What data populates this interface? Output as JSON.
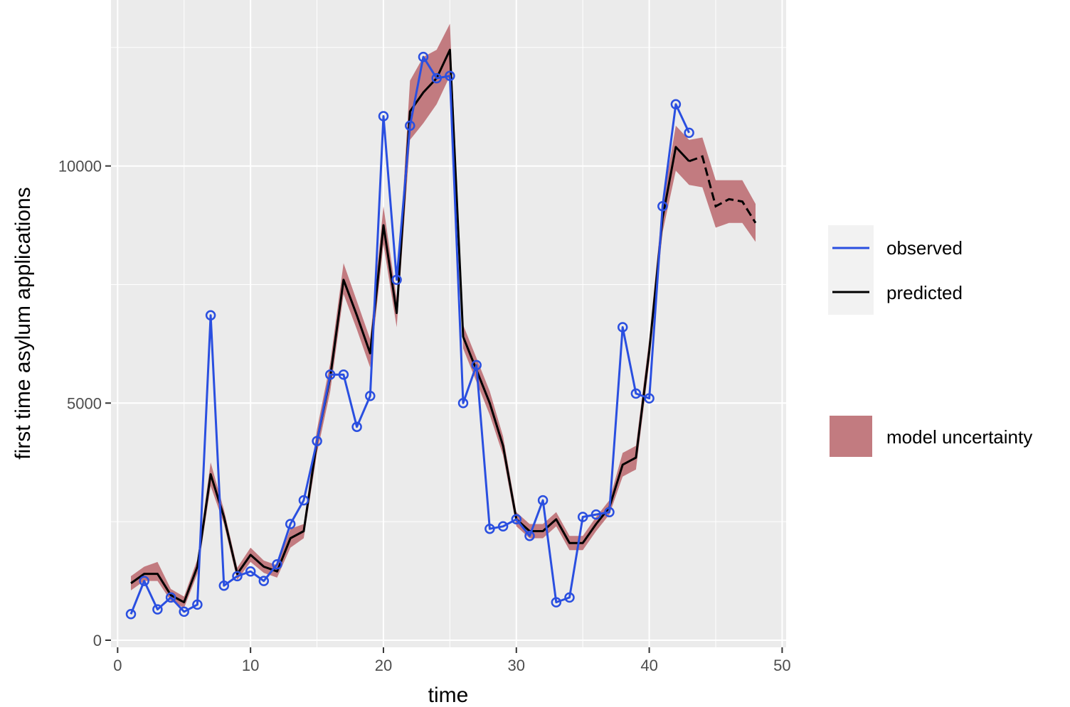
{
  "chart_data": {
    "type": "line",
    "title": "",
    "xlabel": "time",
    "ylabel": "first time asylum applications",
    "xlim": [
      -0.5,
      50.3
    ],
    "ylim": [
      -150,
      13500
    ],
    "x_ticks": [
      0,
      10,
      20,
      30,
      40,
      50
    ],
    "x_tick_labels": [
      "0",
      "10",
      "20",
      "30",
      "40",
      "50"
    ],
    "y_ticks": [
      0,
      5000,
      10000
    ],
    "y_tick_labels": [
      "0",
      "5000",
      "10000"
    ],
    "grid": true,
    "legend_position": "right",
    "colors": {
      "panel_background": "#ebebeb",
      "grid": "#ffffff",
      "observed": "#2a4fe0",
      "predicted": "#000000",
      "uncertainty": "#c27b80"
    },
    "legend": {
      "observed_label": "observed",
      "predicted_label": "predicted",
      "uncertainty_label": "model uncertainty"
    },
    "series": [
      {
        "name": "observed",
        "x": [
          1,
          2,
          3,
          4,
          5,
          6,
          7,
          8,
          9,
          10,
          11,
          12,
          13,
          14,
          15,
          16,
          17,
          18,
          19,
          20,
          21,
          22,
          23,
          24,
          25,
          26,
          27,
          28,
          29,
          30,
          31,
          32,
          33,
          34,
          35,
          36,
          37,
          38,
          39,
          40,
          41,
          42,
          43
        ],
        "values": [
          550,
          1250,
          650,
          900,
          600,
          750,
          6850,
          1150,
          1350,
          1450,
          1250,
          1600,
          2450,
          2950,
          4200,
          5600,
          5600,
          4500,
          5150,
          11050,
          7600,
          10850,
          12300,
          11850,
          11900,
          5000,
          5800,
          2350,
          2400,
          2550,
          2200,
          2950,
          800,
          900,
          2600,
          2650,
          2700,
          6600,
          5200,
          5100,
          9150,
          11300,
          10700
        ]
      },
      {
        "name": "predicted",
        "x": [
          1,
          2,
          3,
          4,
          5,
          6,
          7,
          8,
          9,
          10,
          11,
          12,
          13,
          14,
          15,
          16,
          17,
          18,
          19,
          20,
          21,
          22,
          23,
          24,
          25,
          26,
          27,
          28,
          29,
          30,
          31,
          32,
          33,
          34,
          35,
          36,
          37,
          38,
          39,
          40,
          41,
          42,
          43,
          44,
          45,
          46,
          47,
          48
        ],
        "values": [
          1200,
          1400,
          1400,
          950,
          800,
          1550,
          3500,
          2600,
          1400,
          1800,
          1550,
          1450,
          2150,
          2300,
          4200,
          5550,
          7600,
          6850,
          6050,
          8750,
          6900,
          11150,
          11550,
          11850,
          12450,
          6400,
          5700,
          5000,
          4100,
          2550,
          2300,
          2300,
          2550,
          2050,
          2050,
          2450,
          2800,
          3700,
          3850,
          6100,
          8900,
          10400,
          10100,
          10200,
          9150,
          9300,
          9250,
          8800
        ]
      }
    ],
    "uncertainty": {
      "name": "model uncertainty",
      "x": [
        1,
        2,
        3,
        4,
        5,
        6,
        7,
        8,
        9,
        10,
        11,
        12,
        13,
        14,
        15,
        16,
        17,
        18,
        19,
        20,
        21,
        22,
        23,
        24,
        25,
        26,
        27,
        28,
        29,
        30,
        31,
        32,
        33,
        34,
        35,
        36,
        37,
        38,
        39,
        40,
        41,
        42,
        43,
        44,
        45,
        46,
        47,
        48
      ],
      "lower": [
        1050,
        1250,
        1250,
        830,
        680,
        1400,
        3250,
        2450,
        1270,
        1650,
        1420,
        1320,
        1950,
        2150,
        3950,
        5250,
        7300,
        6550,
        5750,
        8350,
        6600,
        10550,
        10900,
        11300,
        11900,
        6150,
        5450,
        4750,
        3900,
        2400,
        2150,
        2150,
        2400,
        1900,
        1900,
        2300,
        2650,
        3450,
        3600,
        5850,
        8600,
        9900,
        9600,
        9550,
        8700,
        8800,
        8800,
        8400
      ],
      "upper": [
        1350,
        1550,
        1650,
        1080,
        920,
        1700,
        3750,
        2750,
        1530,
        1950,
        1680,
        1580,
        2350,
        2450,
        4450,
        5850,
        7950,
        7150,
        6350,
        9150,
        7200,
        11800,
        12300,
        12450,
        13000,
        6650,
        5950,
        5250,
        4300,
        2700,
        2450,
        2450,
        2700,
        2200,
        2200,
        2600,
        2950,
        3950,
        4100,
        6350,
        9200,
        10850,
        10550,
        10600,
        9700,
        9700,
        9700,
        9200
      ]
    }
  }
}
